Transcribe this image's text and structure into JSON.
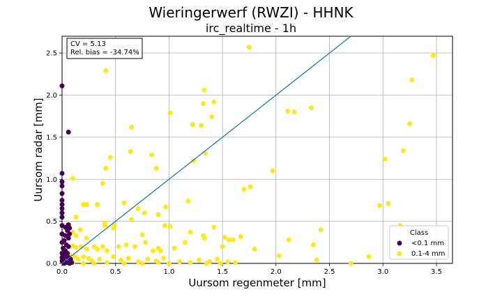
{
  "chart_data": {
    "type": "scatter",
    "title": "Wieringerwerf (RWZI) - HHNK",
    "subtitle": "irc_realtime - 1h",
    "xlabel": "Uursom regenmeter [mm]",
    "ylabel": "Uursom radar [mm]",
    "xlim": [
      0,
      3.65
    ],
    "ylim": [
      0,
      2.7
    ],
    "xticks": [
      "0.0",
      "0.5",
      "1.0",
      "1.5",
      "2.0",
      "2.5",
      "3.0",
      "3.5"
    ],
    "yticks": [
      "0.0",
      "0.5",
      "1.0",
      "1.5",
      "2.0",
      "2.5"
    ],
    "grid": true,
    "stats_box": {
      "cv": "CV = 5.13",
      "bias": "Rel. bias = -34.74%"
    },
    "reference_line": {
      "x": [
        0,
        2.7
      ],
      "y": [
        0,
        2.7
      ],
      "color": "#1f77b4"
    },
    "legend": {
      "title": "Class",
      "position": "bottom-right"
    },
    "series": [
      {
        "name": "<0.1 mm",
        "color": "#440154",
        "points": [
          [
            0.0,
            2.11
          ],
          [
            0.06,
            1.56
          ],
          [
            0.0,
            1.07
          ],
          [
            0.0,
            0.97
          ],
          [
            0.0,
            0.92
          ],
          [
            0.0,
            0.83
          ],
          [
            0.0,
            0.75
          ],
          [
            0.0,
            0.7
          ],
          [
            0.0,
            0.65
          ],
          [
            0.0,
            0.6
          ],
          [
            0.0,
            0.55
          ],
          [
            0.0,
            0.45
          ],
          [
            0.03,
            0.43
          ],
          [
            0.06,
            0.46
          ],
          [
            0.07,
            0.42
          ],
          [
            0.05,
            0.39
          ],
          [
            0.07,
            0.35
          ],
          [
            0.03,
            0.33
          ],
          [
            0.06,
            0.3
          ],
          [
            0.02,
            0.27
          ],
          [
            0.04,
            0.22
          ],
          [
            0.06,
            0.2
          ],
          [
            0.01,
            0.18
          ],
          [
            0.03,
            0.15
          ],
          [
            0.05,
            0.12
          ],
          [
            0.02,
            0.1
          ],
          [
            0.04,
            0.08
          ],
          [
            0.06,
            0.07
          ],
          [
            0.08,
            0.05
          ],
          [
            0.01,
            0.04
          ],
          [
            0.03,
            0.02
          ],
          [
            0.05,
            0.01
          ],
          [
            0.07,
            0.0
          ],
          [
            0.09,
            0.01
          ],
          [
            0.02,
            0.0
          ],
          [
            0.0,
            0.03
          ],
          [
            0.0,
            0.07
          ],
          [
            0.0,
            0.12
          ],
          [
            0.0,
            0.25
          ],
          [
            0.0,
            0.35
          ]
        ]
      },
      {
        "name": "0.1-4 mm",
        "color": "#fde725",
        "points": [
          [
            0.41,
            2.29
          ],
          [
            1.75,
            2.57
          ],
          [
            3.47,
            2.47
          ],
          [
            3.27,
            2.18
          ],
          [
            1.33,
            2.06
          ],
          [
            1.32,
            1.9
          ],
          [
            1.42,
            1.92
          ],
          [
            1.01,
            1.79
          ],
          [
            0.65,
            1.62
          ],
          [
            1.22,
            1.65
          ],
          [
            1.3,
            1.64
          ],
          [
            1.4,
            1.74
          ],
          [
            2.11,
            1.81
          ],
          [
            2.17,
            1.8
          ],
          [
            2.33,
            1.85
          ],
          [
            3.25,
            1.66
          ],
          [
            0.45,
            1.26
          ],
          [
            0.64,
            1.33
          ],
          [
            0.84,
            1.29
          ],
          [
            1.34,
            1.31
          ],
          [
            3.19,
            1.34
          ],
          [
            1.23,
            1.22
          ],
          [
            0.41,
            1.13
          ],
          [
            0.88,
            1.13
          ],
          [
            3.02,
            1.24
          ],
          [
            1.97,
            1.1
          ],
          [
            0.1,
            1.01
          ],
          [
            0.38,
            0.95
          ],
          [
            1.7,
            0.88
          ],
          [
            1.76,
            0.91
          ],
          [
            0.2,
            0.7
          ],
          [
            0.23,
            0.7
          ],
          [
            0.33,
            0.7
          ],
          [
            0.58,
            0.72
          ],
          [
            1.18,
            0.74
          ],
          [
            3.05,
            0.71
          ],
          [
            2.97,
            0.69
          ],
          [
            0.71,
            0.65
          ],
          [
            0.97,
            0.67
          ],
          [
            0.77,
            0.6
          ],
          [
            0.9,
            0.58
          ],
          [
            0.65,
            0.52
          ],
          [
            0.13,
            0.55
          ],
          [
            0.4,
            0.48
          ],
          [
            0.4,
            0.45
          ],
          [
            0.49,
            0.45
          ],
          [
            0.48,
            0.42
          ],
          [
            0.96,
            0.45
          ],
          [
            1.01,
            0.44
          ],
          [
            1.42,
            0.43
          ],
          [
            2.42,
            0.4
          ],
          [
            3.16,
            0.45
          ],
          [
            0.17,
            0.4
          ],
          [
            0.1,
            0.37
          ],
          [
            0.13,
            0.33
          ],
          [
            0.23,
            0.3
          ],
          [
            0.75,
            0.34
          ],
          [
            1.2,
            0.37
          ],
          [
            1.32,
            0.33
          ],
          [
            1.33,
            0.3
          ],
          [
            1.52,
            0.31
          ],
          [
            1.56,
            0.28
          ],
          [
            1.6,
            0.28
          ],
          [
            1.67,
            0.32
          ],
          [
            0.1,
            0.21
          ],
          [
            0.13,
            0.19
          ],
          [
            0.18,
            0.2
          ],
          [
            0.23,
            0.17
          ],
          [
            0.3,
            0.2
          ],
          [
            0.33,
            0.17
          ],
          [
            0.38,
            0.2
          ],
          [
            0.42,
            0.15
          ],
          [
            0.53,
            0.2
          ],
          [
            0.6,
            0.22
          ],
          [
            0.68,
            0.2
          ],
          [
            0.78,
            0.25
          ],
          [
            0.85,
            0.15
          ],
          [
            0.9,
            0.18
          ],
          [
            0.92,
            0.15
          ],
          [
            1.05,
            0.18
          ],
          [
            1.15,
            0.25
          ],
          [
            1.5,
            0.2
          ],
          [
            1.8,
            0.17
          ],
          [
            2.35,
            0.22
          ],
          [
            2.12,
            0.28
          ],
          [
            0.07,
            0.1
          ],
          [
            0.12,
            0.08
          ],
          [
            0.15,
            0.05
          ],
          [
            0.2,
            0.08
          ],
          [
            0.25,
            0.06
          ],
          [
            0.28,
            0.03
          ],
          [
            0.35,
            0.05
          ],
          [
            0.48,
            0.08
          ],
          [
            0.55,
            0.04
          ],
          [
            0.62,
            0.06
          ],
          [
            0.71,
            0.02
          ],
          [
            0.8,
            0.05
          ],
          [
            0.88,
            0.03
          ],
          [
            0.95,
            0.06
          ],
          [
            1.1,
            0.02
          ],
          [
            1.28,
            0.04
          ],
          [
            1.38,
            0.02
          ],
          [
            1.45,
            0.05
          ],
          [
            1.55,
            0.02
          ],
          [
            1.62,
            0.01
          ],
          [
            2.03,
            0.09
          ],
          [
            2.38,
            0.04
          ],
          [
            2.7,
            0.0
          ],
          [
            2.87,
            0.08
          ],
          [
            0.1,
            0.01
          ],
          [
            0.2,
            0.0
          ],
          [
            0.3,
            0.0
          ],
          [
            0.42,
            0.01
          ],
          [
            0.58,
            0.0
          ],
          [
            0.75,
            0.0
          ],
          [
            0.9,
            0.01
          ],
          [
            1.0,
            0.0
          ],
          [
            1.2,
            0.01
          ],
          [
            1.35,
            0.0
          ],
          [
            1.48,
            0.0
          ]
        ]
      }
    ]
  }
}
